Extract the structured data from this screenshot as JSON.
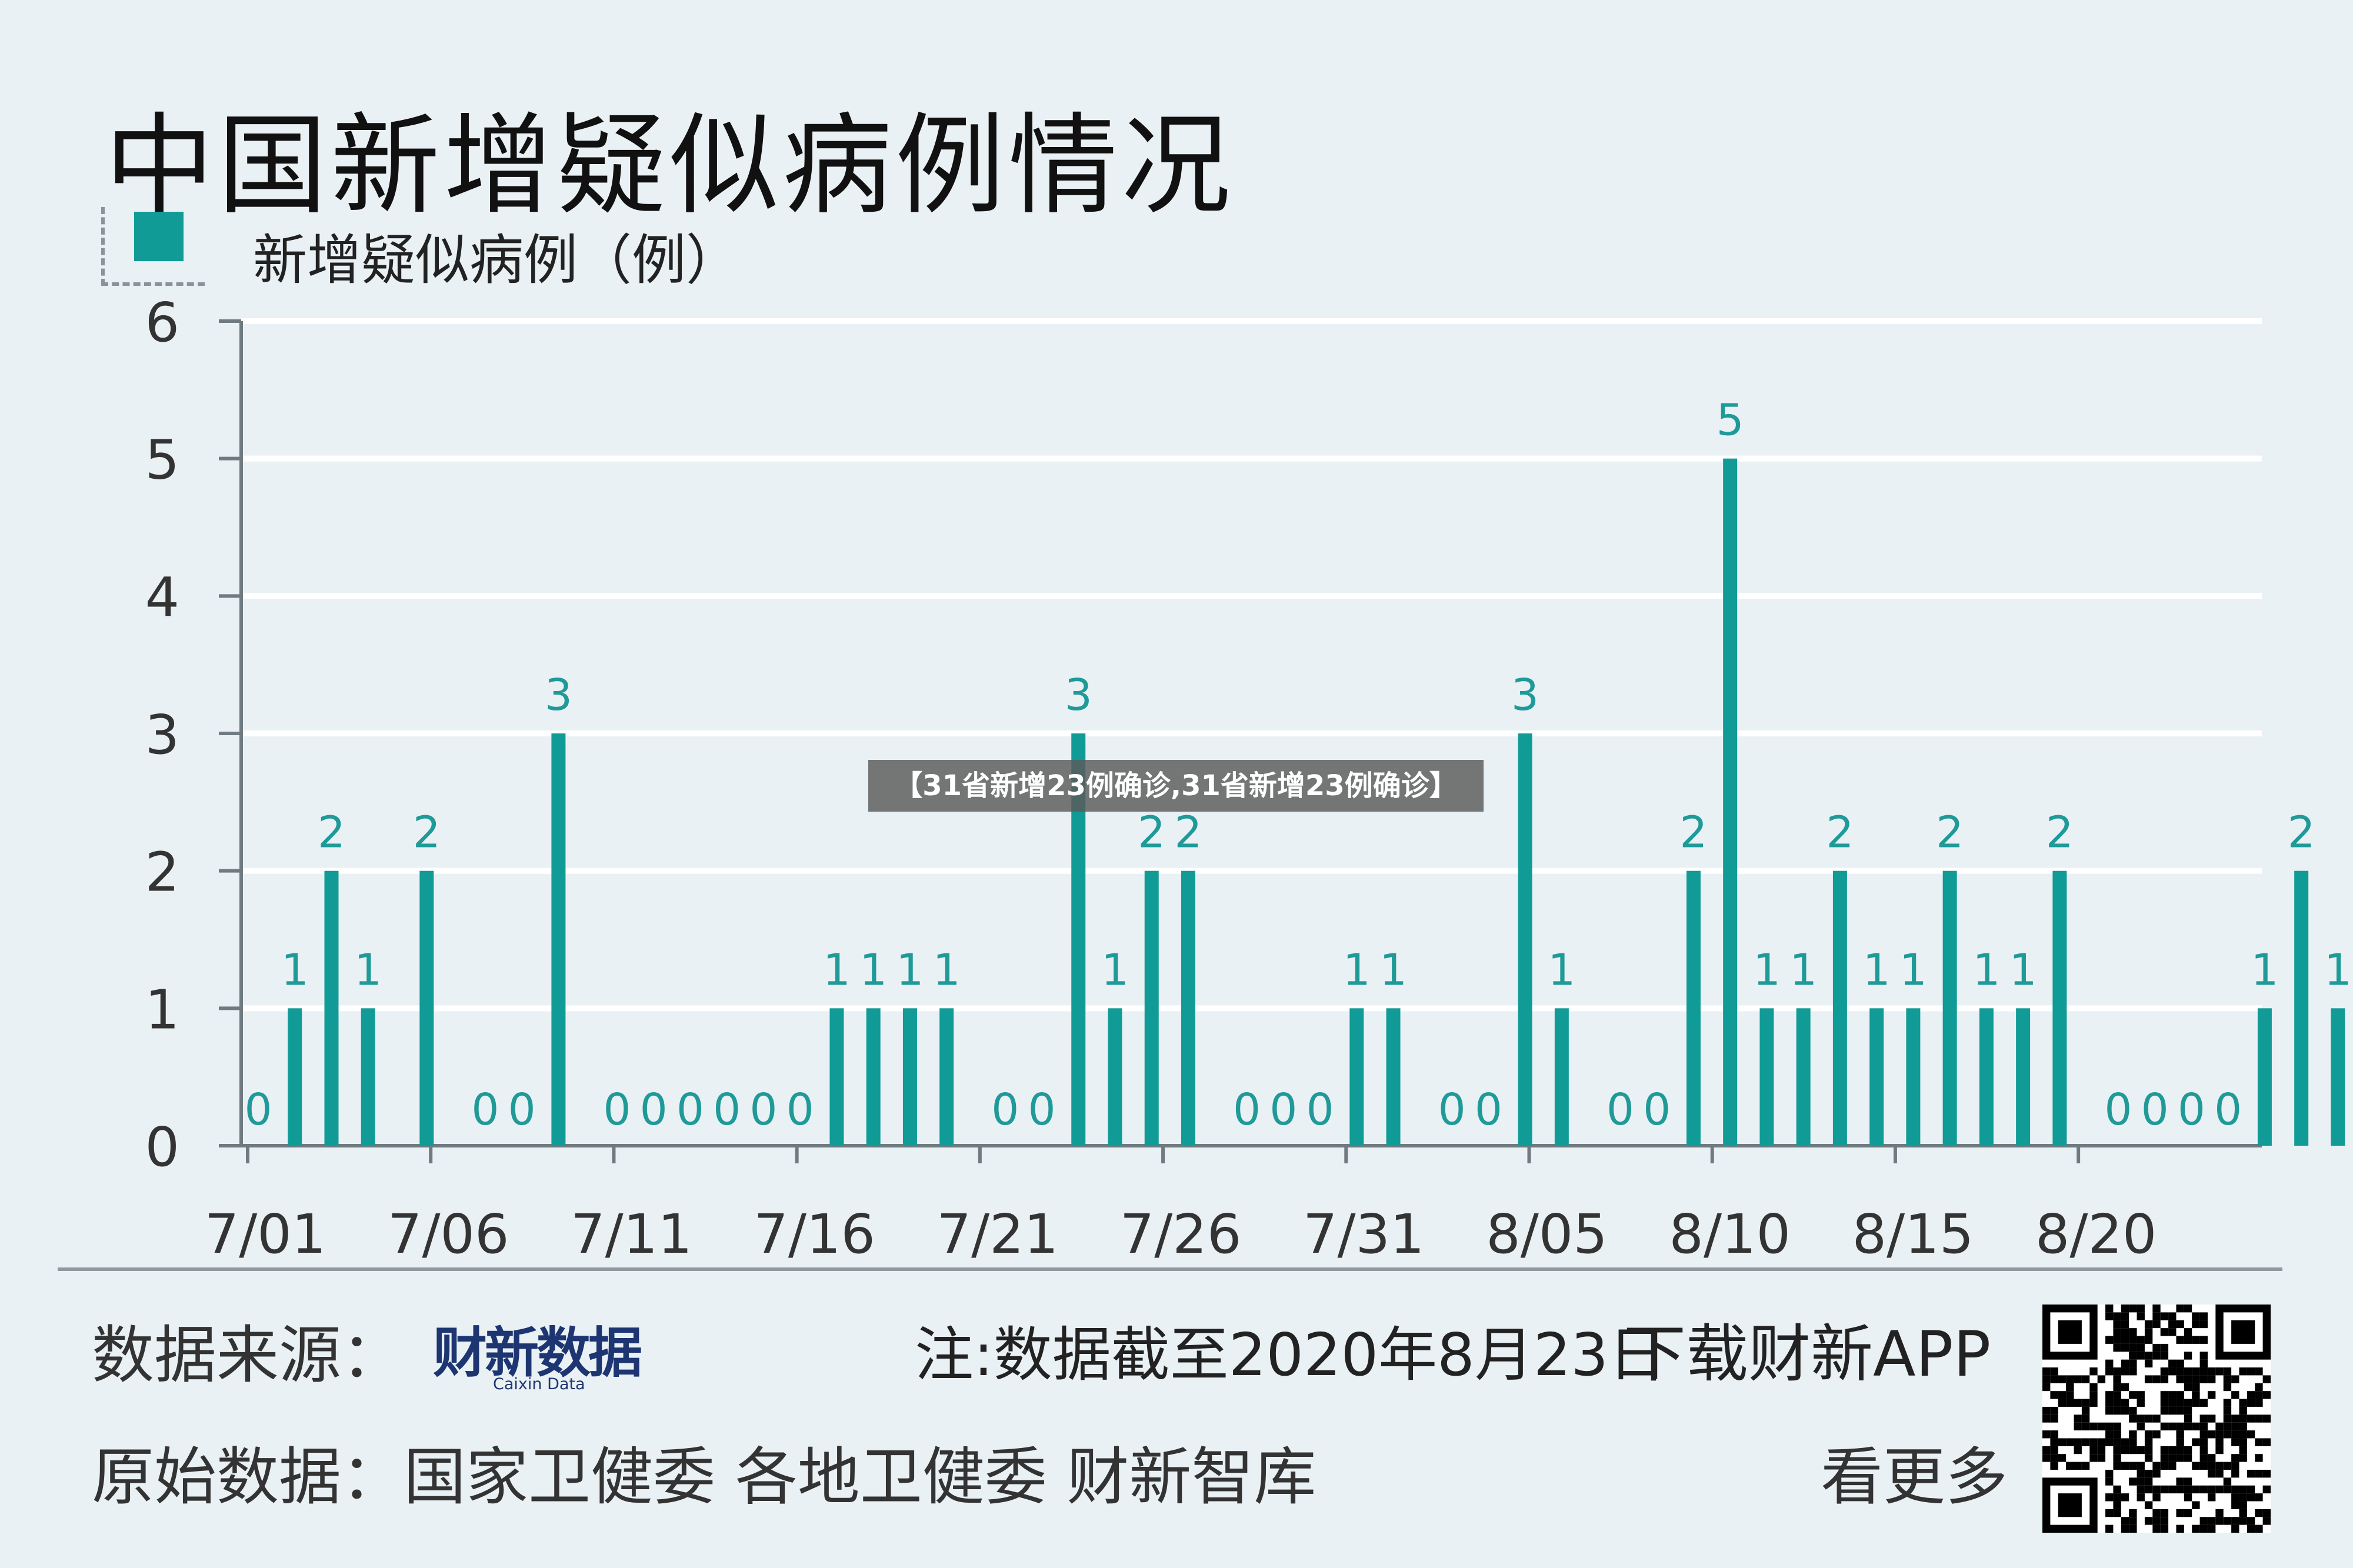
{
  "title": "中国新增疑似病例情况",
  "legend_label": "新增疑似病例（例）",
  "overlay_banner": "【31省新增23例确诊,31省新增23例确诊】",
  "footer": {
    "source_label": "数据来源：",
    "source_logo": "财新数据",
    "source_logo_sub": "Caixin Data",
    "note": "注:数据截至2020年8月23日",
    "download": "下载财新APP",
    "original_label": "原始数据：",
    "original_sources": "国家卫健委  各地卫健委  财新智库",
    "more": "看更多"
  },
  "colors": {
    "bar": "#119b97",
    "label": "#1f9a98",
    "axis": "#6f7b80",
    "background": "#eaf1f4"
  },
  "chart_data": {
    "type": "bar",
    "title": "中国新增疑似病例情况",
    "series": [
      {
        "name": "新增疑似病例（例）",
        "values": [
          0,
          1,
          2,
          1,
          null,
          2,
          null,
          0,
          0,
          3,
          null,
          0,
          0,
          0,
          0,
          0,
          0,
          1,
          1,
          1,
          1,
          null,
          0,
          0,
          3,
          1,
          2,
          2,
          null,
          0,
          0,
          0,
          1,
          1,
          null,
          0,
          0,
          3,
          1,
          null,
          0,
          0,
          2,
          5,
          1,
          1,
          2,
          1,
          1,
          2,
          1,
          1,
          2,
          null,
          0,
          0,
          0,
          0,
          1,
          2,
          1
        ]
      }
    ],
    "x_dates": [
      "7/01",
      "7/02",
      "7/03",
      "7/04",
      "7/05",
      "7/06",
      "7/07",
      "7/08",
      "7/09",
      "7/10",
      "7/11",
      "7/12",
      "7/13",
      "7/14",
      "7/15",
      "7/16",
      "7/17",
      "7/18",
      "7/19",
      "7/20",
      "7/21",
      "7/22",
      "7/23",
      "7/24",
      "7/25",
      "7/26",
      "7/27",
      "7/28",
      "7/29",
      "7/30",
      "7/31",
      "8/01",
      "8/02",
      "8/03",
      "8/04",
      "8/05",
      "8/06",
      "8/07",
      "8/08",
      "8/09",
      "8/10",
      "8/11",
      "8/12",
      "8/13",
      "8/14",
      "8/15",
      "8/16",
      "8/17",
      "8/18",
      "8/19",
      "8/20",
      "8/21",
      "8/22",
      "8/23",
      "8/24",
      "8/25",
      "8/26",
      "8/27",
      "8/28",
      "8/29",
      "8/30"
    ],
    "x_ticks": [
      "7/01",
      "7/06",
      "7/11",
      "7/16",
      "7/21",
      "7/26",
      "7/31",
      "8/05",
      "8/10",
      "8/15",
      "8/20"
    ],
    "y_ticks": [
      0,
      1,
      2,
      3,
      4,
      5,
      6
    ],
    "ylim": [
      0,
      6
    ],
    "grid": true,
    "legend_position": "top-left"
  }
}
